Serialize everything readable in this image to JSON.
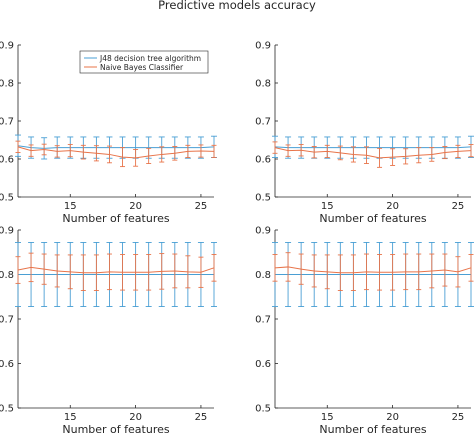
{
  "figure": {
    "title": "Predictive models accuracy"
  },
  "colors": {
    "j48": "#4a9fd4",
    "naive_bayes": "#e8744a",
    "axis": "#262626"
  },
  "chart_data": [
    {
      "type": "line",
      "panel": "top-left",
      "xlabel": "Number of features",
      "ylabel": "",
      "xlim": [
        11,
        26
      ],
      "ylim": [
        0.5,
        0.9
      ],
      "xticks": [
        15,
        20,
        25
      ],
      "yticks": [
        0.5,
        0.6,
        0.7,
        0.8,
        0.9
      ],
      "legend": {
        "placement": "top-right",
        "entries": [
          "J48 decision tree algorithm",
          "Naive Bayes Classifier"
        ]
      },
      "x": [
        11,
        12,
        13,
        14,
        15,
        16,
        17,
        18,
        19,
        20,
        21,
        22,
        23,
        24,
        25,
        26
      ],
      "series": [
        {
          "name": "J48 decision tree algorithm",
          "values": [
            0.635,
            0.63,
            0.628,
            0.63,
            0.63,
            0.63,
            0.63,
            0.63,
            0.63,
            0.63,
            0.63,
            0.63,
            0.63,
            0.63,
            0.63,
            0.632
          ],
          "error": [
            0.028,
            0.028,
            0.028,
            0.028,
            0.028,
            0.028,
            0.028,
            0.028,
            0.028,
            0.028,
            0.028,
            0.028,
            0.028,
            0.028,
            0.028,
            0.028
          ]
        },
        {
          "name": "Naive Bayes Classifier",
          "values": [
            0.632,
            0.622,
            0.625,
            0.62,
            0.622,
            0.618,
            0.615,
            0.612,
            0.605,
            0.603,
            0.608,
            0.612,
            0.615,
            0.62,
            0.621,
            0.62
          ],
          "error": [
            0.015,
            0.015,
            0.014,
            0.015,
            0.016,
            0.018,
            0.02,
            0.022,
            0.025,
            0.022,
            0.02,
            0.02,
            0.018,
            0.016,
            0.016,
            0.016
          ]
        }
      ]
    },
    {
      "type": "line",
      "panel": "top-right",
      "xlabel": "Number of features",
      "ylabel": "",
      "xlim": [
        11,
        26
      ],
      "ylim": [
        0.5,
        0.9
      ],
      "xticks": [
        15,
        20,
        25
      ],
      "yticks": [
        0.5,
        0.6,
        0.7,
        0.8,
        0.9
      ],
      "x": [
        11,
        12,
        13,
        14,
        15,
        16,
        17,
        18,
        19,
        20,
        21,
        22,
        23,
        24,
        25,
        26
      ],
      "series": [
        {
          "name": "J48 decision tree algorithm",
          "values": [
            0.632,
            0.63,
            0.63,
            0.63,
            0.63,
            0.63,
            0.63,
            0.63,
            0.63,
            0.63,
            0.63,
            0.63,
            0.63,
            0.63,
            0.63,
            0.632
          ],
          "error": [
            0.028,
            0.028,
            0.028,
            0.028,
            0.028,
            0.028,
            0.028,
            0.028,
            0.028,
            0.028,
            0.028,
            0.028,
            0.028,
            0.028,
            0.028,
            0.028
          ]
        },
        {
          "name": "Naive Bayes Classifier",
          "values": [
            0.63,
            0.622,
            0.623,
            0.618,
            0.62,
            0.616,
            0.612,
            0.61,
            0.603,
            0.605,
            0.607,
            0.61,
            0.612,
            0.617,
            0.62,
            0.622
          ],
          "error": [
            0.015,
            0.015,
            0.015,
            0.015,
            0.016,
            0.018,
            0.02,
            0.022,
            0.025,
            0.022,
            0.02,
            0.02,
            0.018,
            0.016,
            0.016,
            0.016
          ]
        }
      ]
    },
    {
      "type": "line",
      "panel": "bottom-left",
      "xlabel": "Number of features",
      "ylabel": "",
      "xlim": [
        11,
        26
      ],
      "ylim": [
        0.5,
        0.9
      ],
      "xticks": [
        15,
        20,
        25
      ],
      "yticks": [
        0.5,
        0.6,
        0.7,
        0.8,
        0.9
      ],
      "x": [
        11,
        12,
        13,
        14,
        15,
        16,
        17,
        18,
        19,
        20,
        21,
        22,
        23,
        24,
        25,
        26
      ],
      "series": [
        {
          "name": "J48 decision tree algorithm",
          "values": [
            0.8,
            0.8,
            0.8,
            0.8,
            0.8,
            0.8,
            0.8,
            0.8,
            0.8,
            0.8,
            0.8,
            0.8,
            0.8,
            0.8,
            0.8,
            0.8
          ],
          "error": [
            0.072,
            0.072,
            0.072,
            0.072,
            0.072,
            0.072,
            0.072,
            0.072,
            0.072,
            0.072,
            0.072,
            0.072,
            0.072,
            0.072,
            0.072,
            0.072
          ]
        },
        {
          "name": "Naive Bayes Classifier",
          "values": [
            0.81,
            0.816,
            0.812,
            0.808,
            0.806,
            0.804,
            0.804,
            0.806,
            0.805,
            0.805,
            0.805,
            0.807,
            0.808,
            0.806,
            0.805,
            0.815
          ],
          "error": [
            0.03,
            0.032,
            0.034,
            0.036,
            0.038,
            0.04,
            0.04,
            0.04,
            0.04,
            0.04,
            0.04,
            0.04,
            0.038,
            0.036,
            0.034,
            0.03
          ]
        }
      ]
    },
    {
      "type": "line",
      "panel": "bottom-right",
      "xlabel": "Number of features",
      "ylabel": "",
      "xlim": [
        11,
        26
      ],
      "ylim": [
        0.5,
        0.9
      ],
      "xticks": [
        15,
        20,
        25
      ],
      "yticks": [
        0.5,
        0.6,
        0.7,
        0.8,
        0.9
      ],
      "x": [
        11,
        12,
        13,
        14,
        15,
        16,
        17,
        18,
        19,
        20,
        21,
        22,
        23,
        24,
        25,
        26
      ],
      "series": [
        {
          "name": "J48 decision tree algorithm",
          "values": [
            0.8,
            0.8,
            0.8,
            0.8,
            0.8,
            0.8,
            0.8,
            0.8,
            0.8,
            0.8,
            0.8,
            0.8,
            0.8,
            0.8,
            0.8,
            0.8
          ],
          "error": [
            0.072,
            0.072,
            0.072,
            0.072,
            0.072,
            0.072,
            0.072,
            0.072,
            0.072,
            0.072,
            0.072,
            0.072,
            0.072,
            0.072,
            0.072,
            0.072
          ]
        },
        {
          "name": "Naive Bayes Classifier",
          "values": [
            0.815,
            0.817,
            0.812,
            0.808,
            0.806,
            0.804,
            0.804,
            0.806,
            0.805,
            0.805,
            0.806,
            0.806,
            0.808,
            0.81,
            0.806,
            0.815
          ],
          "error": [
            0.03,
            0.032,
            0.034,
            0.036,
            0.038,
            0.04,
            0.04,
            0.04,
            0.04,
            0.04,
            0.04,
            0.04,
            0.038,
            0.036,
            0.034,
            0.03
          ]
        }
      ]
    }
  ]
}
